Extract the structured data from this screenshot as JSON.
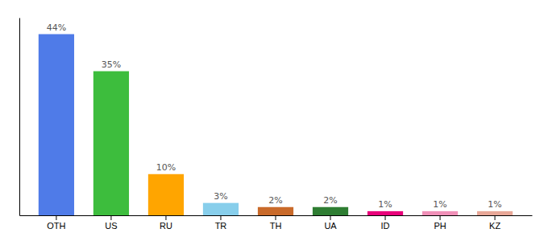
{
  "chart_data": {
    "type": "bar",
    "categories": [
      "OTH",
      "US",
      "RU",
      "TR",
      "TH",
      "UA",
      "ID",
      "PH",
      "KZ"
    ],
    "values": [
      44,
      35,
      10,
      3,
      2,
      2,
      1,
      1,
      1
    ],
    "value_labels": [
      "44%",
      "35%",
      "10%",
      "3%",
      "2%",
      "2%",
      "1%",
      "1%",
      "1%"
    ],
    "colors": [
      "#4F7BE8",
      "#3DBD3D",
      "#FFA500",
      "#87CEEB",
      "#C96A2A",
      "#2E7D32",
      "#E8007A",
      "#F090B8",
      "#E8A898"
    ],
    "ylim": [
      0,
      48
    ],
    "data_labels": true,
    "tick_labels": "x"
  }
}
